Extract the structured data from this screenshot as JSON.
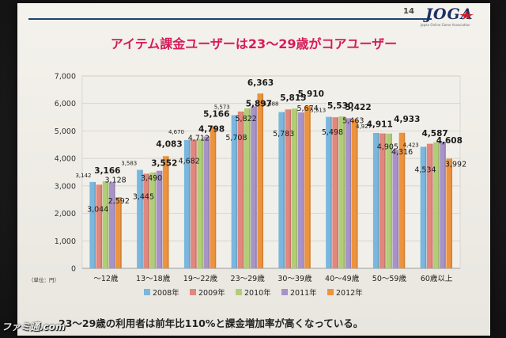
{
  "slide": {
    "page_number": "14",
    "logo_text": "JOGA",
    "logo_subtext": "Japan Online Game Association",
    "title": "アイテム課金ユーザーは23～29歳がコアユーザー",
    "footer": "23～29歳の利用者は前年比110%と課金増加率が高くなっている。",
    "watermark": "ファミ通.com"
  },
  "chart_data": {
    "type": "bar",
    "title": "",
    "xlabel": "",
    "ylabel": "",
    "unit_label": "（単位：円）",
    "ylim": [
      0,
      7000
    ],
    "yticks": [
      "0",
      "1,000",
      "2,000",
      "3,000",
      "4,000",
      "5,000",
      "6,000",
      "7,000"
    ],
    "grid": true,
    "legend_position": "bottom",
    "categories": [
      "～12歳",
      "13～18歳",
      "19～22歳",
      "23～29歳",
      "30～39歳",
      "40～49歳",
      "50～59歳",
      "60歳以上"
    ],
    "series": [
      {
        "name": "2008年",
        "color": "#79b7df",
        "values": [
          3142,
          3583,
          4670,
          5573,
          5688,
          5513,
          4927,
          4423
        ],
        "labels": [
          "3,142",
          "3,583",
          "4,670",
          "5,573",
          "5,688",
          "5,513",
          "4,927",
          "4,423"
        ]
      },
      {
        "name": "2009年",
        "color": "#e2877d",
        "values": [
          3044,
          3445,
          4682,
          5708,
          5783,
          5498,
          4911,
          4534
        ],
        "labels": [
          "3,044",
          "3,445",
          "4,682",
          "5,708",
          "5,783",
          "5,498",
          "4,911",
          "4,534"
        ]
      },
      {
        "name": "2010年",
        "color": "#b1cd76",
        "values": [
          3166,
          3490,
          4712,
          5822,
          5815,
          5530,
          4905,
          4587
        ],
        "labels": [
          "3,166",
          "3,490",
          "4,712",
          "5,822",
          "5,815",
          "5,530",
          "4,905",
          "4,587"
        ]
      },
      {
        "name": "2011年",
        "color": "#a893c9",
        "values": [
          3128,
          3552,
          4798,
          5897,
          5674,
          5463,
          4316,
          4608
        ],
        "labels": [
          "3,128",
          "3,552",
          "4,798",
          "5,897",
          "5,674",
          "5,463",
          "4,316",
          "4,608"
        ]
      },
      {
        "name": "2012年",
        "color": "#ee933d",
        "values": [
          2592,
          4083,
          5166,
          6363,
          5910,
          5422,
          4933,
          3992
        ],
        "labels": [
          "2,592",
          "4,083",
          "5,166",
          "6,363",
          "5,910",
          "5,422",
          "4,933",
          "3,992"
        ]
      }
    ]
  }
}
